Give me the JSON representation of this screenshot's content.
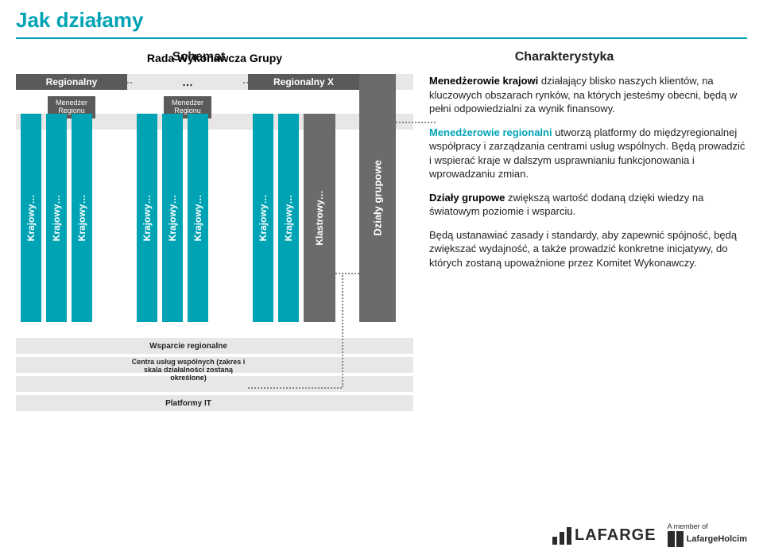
{
  "title": "Jak działamy",
  "subtitles": {
    "left": "Schemat",
    "right": "Charakterystyka"
  },
  "rada": "Rada Wykonawcza Grupy",
  "regional": {
    "r1": "Regionalny",
    "dots": "…",
    "r2": "Regionalny X"
  },
  "menedzer": "Menedżer Regionu",
  "krajowy": "Krajowy…",
  "klastrowy": "Klastrowy…",
  "dzialy": "Działy grupowe",
  "wsparcie": "Wsparcie regionalne",
  "centra": "Centra usług wspólnych (zakres i skala działalności zostaną określone)",
  "platformy": "Platformy IT",
  "text": {
    "p1a": "Menedżerowie krajowi",
    "p1b": " działający blisko naszych klientów, na kluczowych obszarach rynków, na których jesteśmy obecni, będą w pełni odpowiedzialni za wynik finansowy.",
    "p2a": "Menedżerowie regionalni",
    "p2b": " utworzą platformy do międzyregionalnej współpracy i zarządzania centrami usług wspólnych. Będą prowadzić i wspierać kraje w dalszym usprawnianiu funkcjonowania i wprowadzaniu zmian.",
    "p3a": "Działy grupowe",
    "p3b": " zwiększą wartość dodaną dzięki wiedzy na światowym poziomie i wsparciu.",
    "p4": "Będą ustanawiać zasady i standardy, aby zapewnić spójność, będą zwiększać wydajność, a także prowadzić konkretne inicjatywy, do których zostaną upoważnione przez Komitet Wykonawczy."
  },
  "footer": {
    "brand": "LAFARGE",
    "member": "A member of",
    "lh": "LafargeHolcim"
  },
  "colors": {
    "accent": "#00a3b4",
    "darkgray": "#5a5a5a",
    "medgray": "#6b6b6b",
    "band": "#e9e7e5"
  }
}
